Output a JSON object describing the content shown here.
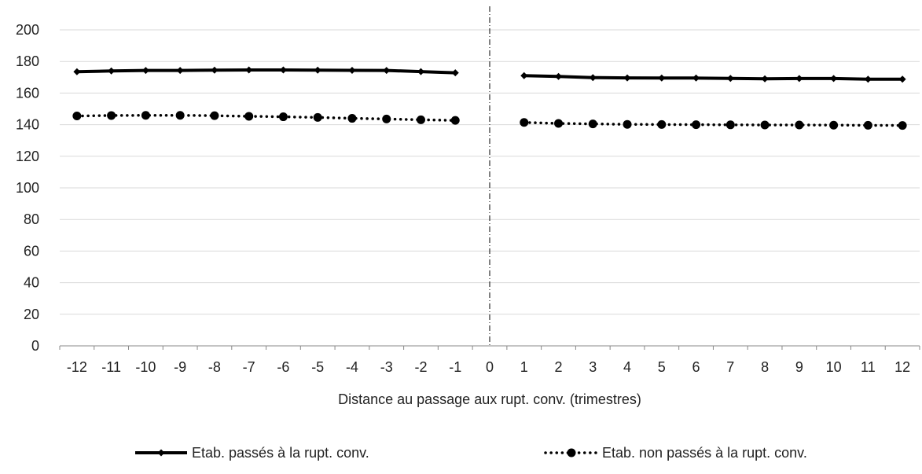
{
  "chart_data": {
    "type": "line",
    "xlabel": "Distance au passage aux rupt. conv.  (trimestres)",
    "ylabel": "",
    "title": "",
    "ylim": [
      0,
      200
    ],
    "yticks": [
      "0",
      "20",
      "40",
      "60",
      "80",
      "100",
      "120",
      "140",
      "160",
      "180",
      "200"
    ],
    "categories": [
      "-12",
      "-11",
      "-10",
      "-9",
      "-8",
      "-7",
      "-6",
      "-5",
      "-4",
      "-3",
      "-2",
      "-1",
      "0",
      "1",
      "2",
      "3",
      "4",
      "5",
      "6",
      "7",
      "8",
      "9",
      "10",
      "11",
      "12"
    ],
    "reference_line_at": "0",
    "legend_position": "bottom",
    "grid": true,
    "series": [
      {
        "name": "Etab. passés à la rupt. conv.",
        "style": "solid",
        "marker": "diamond",
        "color": "#000000",
        "values": [
          173.5,
          174,
          174.3,
          174.3,
          174.5,
          174.6,
          174.6,
          174.5,
          174.4,
          174.3,
          173.6,
          172.8,
          null,
          171,
          170.5,
          169.8,
          169.6,
          169.5,
          169.5,
          169.3,
          169,
          169.2,
          169.2,
          168.8,
          168.8
        ]
      },
      {
        "name": "Etab. non passés à la rupt. conv.",
        "style": "dotted",
        "marker": "circle",
        "color": "#000000",
        "values": [
          145.5,
          145.8,
          145.9,
          145.9,
          145.7,
          145.3,
          145,
          144.6,
          144,
          143.6,
          143.1,
          142.7,
          null,
          141.4,
          140.8,
          140.5,
          140.2,
          140.1,
          140,
          139.9,
          139.8,
          139.8,
          139.7,
          139.6,
          139.5
        ]
      }
    ]
  }
}
